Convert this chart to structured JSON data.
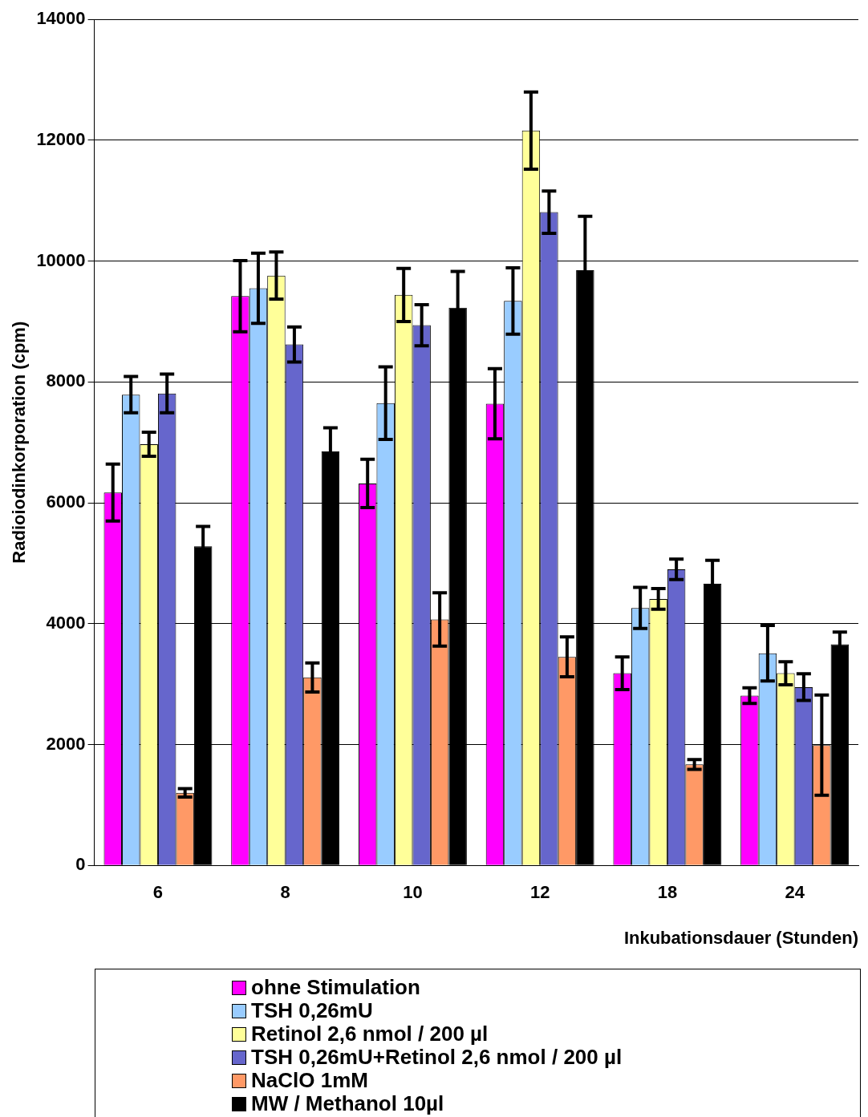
{
  "chart_data": {
    "type": "bar",
    "xlabel": "Inkubationsdauer (Stunden)",
    "ylabel": "Radioiodinkorporation (cpm)",
    "categories": [
      "6",
      "8",
      "10",
      "12",
      "18",
      "24"
    ],
    "ylim": [
      0,
      14000
    ],
    "yticks": [
      0,
      2000,
      4000,
      6000,
      8000,
      10000,
      12000,
      14000
    ],
    "grid": "y",
    "legend": "bottom",
    "series": [
      {
        "name": "ohne Stimulation",
        "color": "#ff00ff",
        "values": [
          6170,
          9420,
          6320,
          7640,
          3180,
          2810
        ],
        "errors": [
          470,
          590,
          400,
          580,
          270,
          130
        ]
      },
      {
        "name": "TSH 0,26mU",
        "color": "#99ccff",
        "values": [
          7790,
          9550,
          7650,
          9340,
          4260,
          3510
        ],
        "errors": [
          300,
          580,
          600,
          550,
          340,
          460
        ]
      },
      {
        "name": "Retinol 2,6 nmol / 200 µl",
        "color": "#ffff99",
        "values": [
          6970,
          9760,
          9440,
          12160,
          4410,
          3180
        ],
        "errors": [
          200,
          390,
          440,
          640,
          170,
          190
        ]
      },
      {
        "name": "TSH 0,26mU+Retinol 2,6 nmol / 200 µl",
        "color": "#6666cc",
        "values": [
          7810,
          8620,
          8940,
          10810,
          4900,
          2950
        ],
        "errors": [
          320,
          290,
          340,
          350,
          170,
          220
        ]
      },
      {
        "name": "NaClO 1mM",
        "color": "#ff9966",
        "values": [
          1200,
          3110,
          4070,
          3450,
          1670,
          1990
        ],
        "errors": [
          70,
          240,
          440,
          330,
          80,
          830
        ]
      },
      {
        "name": "MW / Methanol 10µl",
        "color": "#000000",
        "values": [
          5280,
          6850,
          9230,
          9850,
          4660,
          3660
        ],
        "errors": [
          330,
          390,
          600,
          890,
          390,
          200
        ]
      }
    ]
  }
}
